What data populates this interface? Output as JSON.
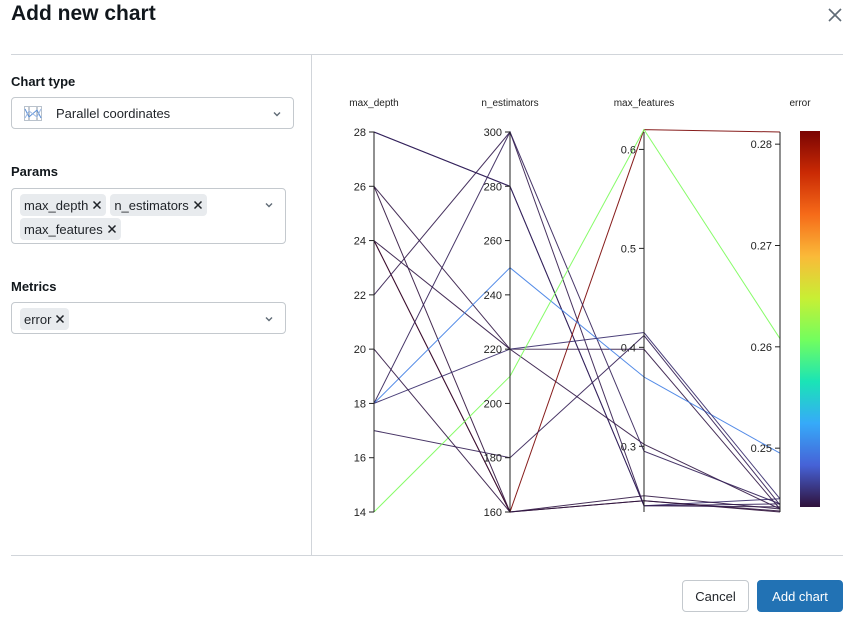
{
  "dialog": {
    "title": "Add new chart",
    "close_icon": "close-icon"
  },
  "form": {
    "chart_type": {
      "label": "Chart type",
      "value": "Parallel coordinates",
      "icon": "parallel-coordinates-icon"
    },
    "params": {
      "label": "Params",
      "chips": [
        "max_depth",
        "n_estimators",
        "max_features"
      ]
    },
    "metrics": {
      "label": "Metrics",
      "chips": [
        "error"
      ]
    }
  },
  "footer": {
    "cancel_label": "Cancel",
    "submit_label": "Add chart"
  },
  "colors": {
    "primary": "#2272b4",
    "border": "#c4c9ce"
  },
  "chart_data": {
    "type": "parallel_coordinates",
    "axes": [
      {
        "name": "max_depth",
        "range": [
          14,
          28
        ],
        "ticks": [
          14,
          16,
          18,
          20,
          22,
          24,
          26,
          28
        ],
        "tick_labels": [
          "14",
          "16",
          "18",
          "20",
          "22",
          "24",
          "26",
          "28"
        ]
      },
      {
        "name": "n_estimators",
        "range": [
          160,
          300
        ],
        "ticks": [
          160,
          180,
          200,
          220,
          240,
          260,
          280,
          300
        ],
        "tick_labels": [
          "160",
          "180",
          "200",
          "220",
          "240",
          "260",
          "280",
          "300"
        ]
      },
      {
        "name": "max_features",
        "range": [
          0.2336,
          0.6176
        ],
        "ticks": [
          0.3,
          0.4,
          0.5,
          0.6
        ],
        "tick_labels": [
          "0.3",
          "0.4",
          "0.5",
          "0.6"
        ]
      },
      {
        "name": "error",
        "range": [
          0.2437,
          0.2812
        ],
        "ticks": [
          0.25,
          0.26,
          0.27,
          0.28
        ],
        "tick_labels": [
          "0.25",
          "0.26",
          "0.27",
          "0.28"
        ]
      }
    ],
    "color_metric": "error",
    "colorscale": [
      "#30123b",
      "#4662d7",
      "#36aaf9",
      "#1ae4b6",
      "#72fe5e",
      "#c8ef34",
      "#faba39",
      "#f66b19",
      "#ca2a04",
      "#7a0403"
    ],
    "runs": [
      {
        "values": [
          28,
          280,
          0.24,
          0.245
        ]
      },
      {
        "values": [
          28,
          280,
          0.24,
          0.2445
        ]
      },
      {
        "values": [
          26,
          160,
          0.245,
          0.2438
        ]
      },
      {
        "values": [
          26,
          220,
          0.302,
          0.244
        ]
      },
      {
        "values": [
          24,
          160,
          0.62,
          0.2812
        ]
      },
      {
        "values": [
          24,
          160,
          0.245,
          0.2437
        ]
      },
      {
        "values": [
          24,
          220,
          0.398,
          0.244
        ]
      },
      {
        "values": [
          22,
          300,
          0.24,
          0.2442
        ]
      },
      {
        "values": [
          18,
          300,
          0.295,
          0.2445
        ]
      },
      {
        "values": [
          18,
          250,
          0.37,
          0.2495
        ]
      },
      {
        "values": [
          18,
          220,
          0.415,
          0.245
        ]
      },
      {
        "values": [
          17,
          180,
          0.412,
          0.2444
        ]
      },
      {
        "values": [
          14,
          210,
          0.62,
          0.2608
        ]
      },
      {
        "values": [
          20,
          160,
          0.25,
          0.244
        ]
      }
    ]
  }
}
